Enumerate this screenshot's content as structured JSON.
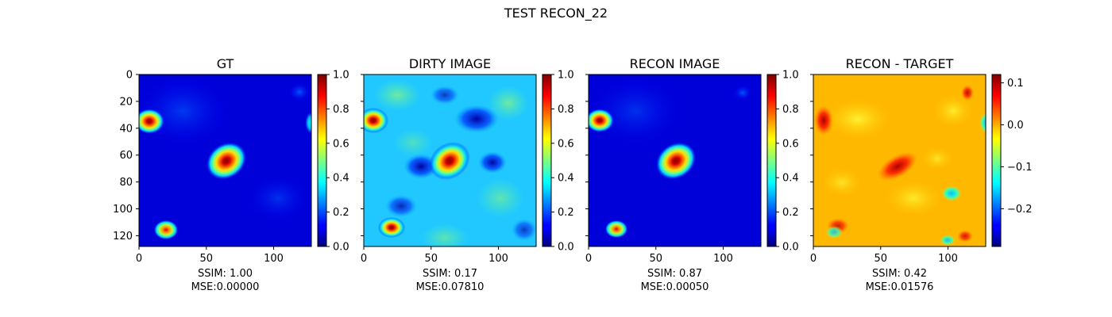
{
  "figure": {
    "suptitle": "TEST RECON_22"
  },
  "chart_data": [
    {
      "type": "heatmap",
      "title": "GT",
      "xticks": [
        0,
        50,
        100
      ],
      "yticks": [
        0,
        20,
        40,
        60,
        80,
        100,
        120
      ],
      "xlim": [
        0,
        128
      ],
      "ylim": [
        128,
        0
      ],
      "colorbar": {
        "ticks": [
          "0.0",
          "0.2",
          "0.4",
          "0.6",
          "0.8",
          "1.0"
        ],
        "range": [
          0,
          1
        ]
      },
      "caption": [
        "SSIM: 1.00",
        "MSE:0.00000"
      ]
    },
    {
      "type": "heatmap",
      "title": "DIRTY IMAGE",
      "xticks": [
        0,
        50,
        100
      ],
      "xlim": [
        0,
        128
      ],
      "ylim": [
        128,
        0
      ],
      "colorbar": {
        "ticks": [
          "0.0",
          "0.2",
          "0.4",
          "0.6",
          "0.8",
          "1.0"
        ],
        "range": [
          0,
          1
        ]
      },
      "caption": [
        "SSIM: 0.17",
        "MSE:0.07810"
      ]
    },
    {
      "type": "heatmap",
      "title": "RECON IMAGE",
      "xticks": [
        0,
        50,
        100
      ],
      "xlim": [
        0,
        128
      ],
      "ylim": [
        128,
        0
      ],
      "colorbar": {
        "ticks": [
          "0.0",
          "0.2",
          "0.4",
          "0.6",
          "0.8",
          "1.0"
        ],
        "range": [
          0,
          1
        ]
      },
      "caption": [
        "SSIM: 0.87",
        "MSE:0.00050"
      ]
    },
    {
      "type": "heatmap",
      "title": "RECON - TARGET",
      "xticks": [
        0,
        50,
        100
      ],
      "xlim": [
        0,
        128
      ],
      "ylim": [
        128,
        0
      ],
      "colorbar": {
        "ticks": [
          "0.1",
          "0.0",
          "−0.1",
          "−0.2"
        ],
        "tick_values": [
          0.1,
          0.0,
          -0.1,
          -0.2
        ],
        "range": [
          -0.29,
          0.12
        ]
      },
      "caption": [
        "SSIM: 0.42",
        "MSE:0.01576"
      ]
    }
  ]
}
